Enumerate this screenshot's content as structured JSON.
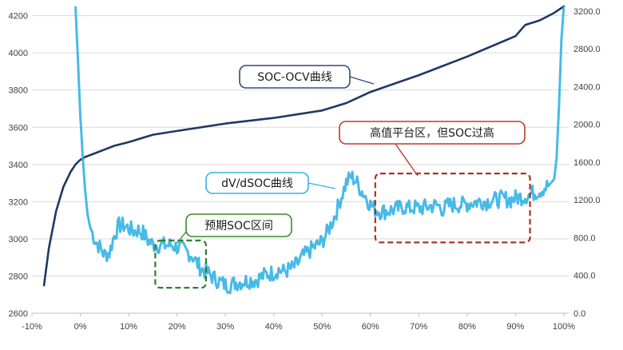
{
  "chart_data": {
    "type": "line",
    "x_ticks": [
      "-10%",
      "0%",
      "10%",
      "20%",
      "30%",
      "40%",
      "50%",
      "60%",
      "70%",
      "80%",
      "90%",
      "100%"
    ],
    "xlim": [
      -10,
      101
    ],
    "y_left_ticks": [
      "2600",
      "2800",
      "3000",
      "3200",
      "3400",
      "3600",
      "3800",
      "4000",
      "4200"
    ],
    "ylim_left": [
      2600,
      4250
    ],
    "y_right_ticks": [
      "0.0",
      "400.0",
      "800.0",
      "1200.0",
      "1600.0",
      "2000.0",
      "2400.0",
      "2800.0",
      "3200.0"
    ],
    "ylim_right": [
      0,
      3250
    ],
    "grid": "horizontal",
    "series": [
      {
        "name": "SOC-OCV曲线",
        "axis": "left",
        "color": "#1f3864",
        "x": [
          -7.5,
          -6.5,
          -5,
          -3.5,
          -2,
          -1,
          0,
          1,
          3,
          5,
          7,
          10,
          15,
          20,
          30,
          40,
          50,
          55,
          60,
          70,
          80,
          90,
          92,
          95,
          98,
          100
        ],
        "y": [
          2750,
          2950,
          3150,
          3280,
          3360,
          3400,
          3425,
          3440,
          3460,
          3480,
          3500,
          3520,
          3560,
          3580,
          3620,
          3650,
          3690,
          3730,
          3790,
          3880,
          3980,
          4090,
          4150,
          4175,
          4215,
          4250
        ]
      },
      {
        "name": "dV/dSOC曲线",
        "axis": "right",
        "color": "#33b3e6",
        "x": [
          -1,
          -0.5,
          0,
          0.5,
          1,
          1.5,
          2,
          3,
          4,
          5,
          6,
          7,
          8,
          9,
          10,
          11,
          12,
          13,
          14,
          15,
          16,
          17,
          18,
          19,
          20,
          21,
          22,
          23,
          24,
          25,
          26,
          27,
          28,
          29,
          30,
          31,
          32,
          33,
          34,
          35,
          36,
          37,
          38,
          39,
          40,
          41,
          42,
          43,
          44,
          45,
          46,
          47,
          48,
          49,
          50,
          51,
          52,
          53,
          54,
          55,
          56,
          57,
          58,
          59,
          60,
          61,
          62,
          63,
          64,
          65,
          66,
          67,
          68,
          69,
          70,
          71,
          72,
          73,
          74,
          75,
          76,
          77,
          78,
          79,
          80,
          81,
          82,
          83,
          84,
          85,
          86,
          87,
          88,
          89,
          90,
          91,
          92,
          93,
          94,
          95,
          96,
          97,
          98,
          98.5,
          99,
          99.5,
          100
        ],
        "y": [
          3250,
          2700,
          2100,
          1650,
          1300,
          1050,
          920,
          780,
          700,
          620,
          640,
          820,
          930,
          930,
          900,
          870,
          880,
          850,
          770,
          730,
          720,
          720,
          720,
          720,
          700,
          680,
          650,
          620,
          540,
          470,
          440,
          400,
          360,
          330,
          300,
          300,
          320,
          330,
          340,
          350,
          350,
          370,
          400,
          420,
          430,
          460,
          440,
          460,
          480,
          530,
          600,
          640,
          690,
          720,
          760,
          850,
          960,
          1080,
          1240,
          1380,
          1450,
          1400,
          1310,
          1240,
          1150,
          1100,
          1080,
          1080,
          1090,
          1100,
          1110,
          1130,
          1110,
          1120,
          1110,
          1120,
          1130,
          1140,
          1140,
          1100,
          1140,
          1150,
          1150,
          1150,
          1160,
          1170,
          1180,
          1190,
          1180,
          1200,
          1200,
          1210,
          1210,
          1200,
          1220,
          1230,
          1240,
          1260,
          1280,
          1300,
          1330,
          1360,
          1420,
          1650,
          2200,
          2900,
          3250
        ]
      }
    ],
    "annotations": [
      {
        "id": "ocv",
        "text": "SOC-OCV曲线"
      },
      {
        "id": "dvdsoc",
        "text": "dV/dSOC曲线"
      },
      {
        "id": "expected",
        "text": "预期SOC区间"
      },
      {
        "id": "plateau",
        "text": "高值平台区，但SOC过高"
      }
    ],
    "colors": {
      "ocv_line": "#1f3864",
      "dv_line": "#33b3e6",
      "ocv_box_border": "#2e4a7a",
      "dv_box_border": "#33b3e6",
      "expected_box_border": "#3a8a2a",
      "expected_region": "#2e7d32",
      "plateau_box_border": "#c0392b",
      "plateau_region": "#a93226",
      "gridline": "#d9d9d9",
      "text": "#1a1a1a"
    }
  }
}
